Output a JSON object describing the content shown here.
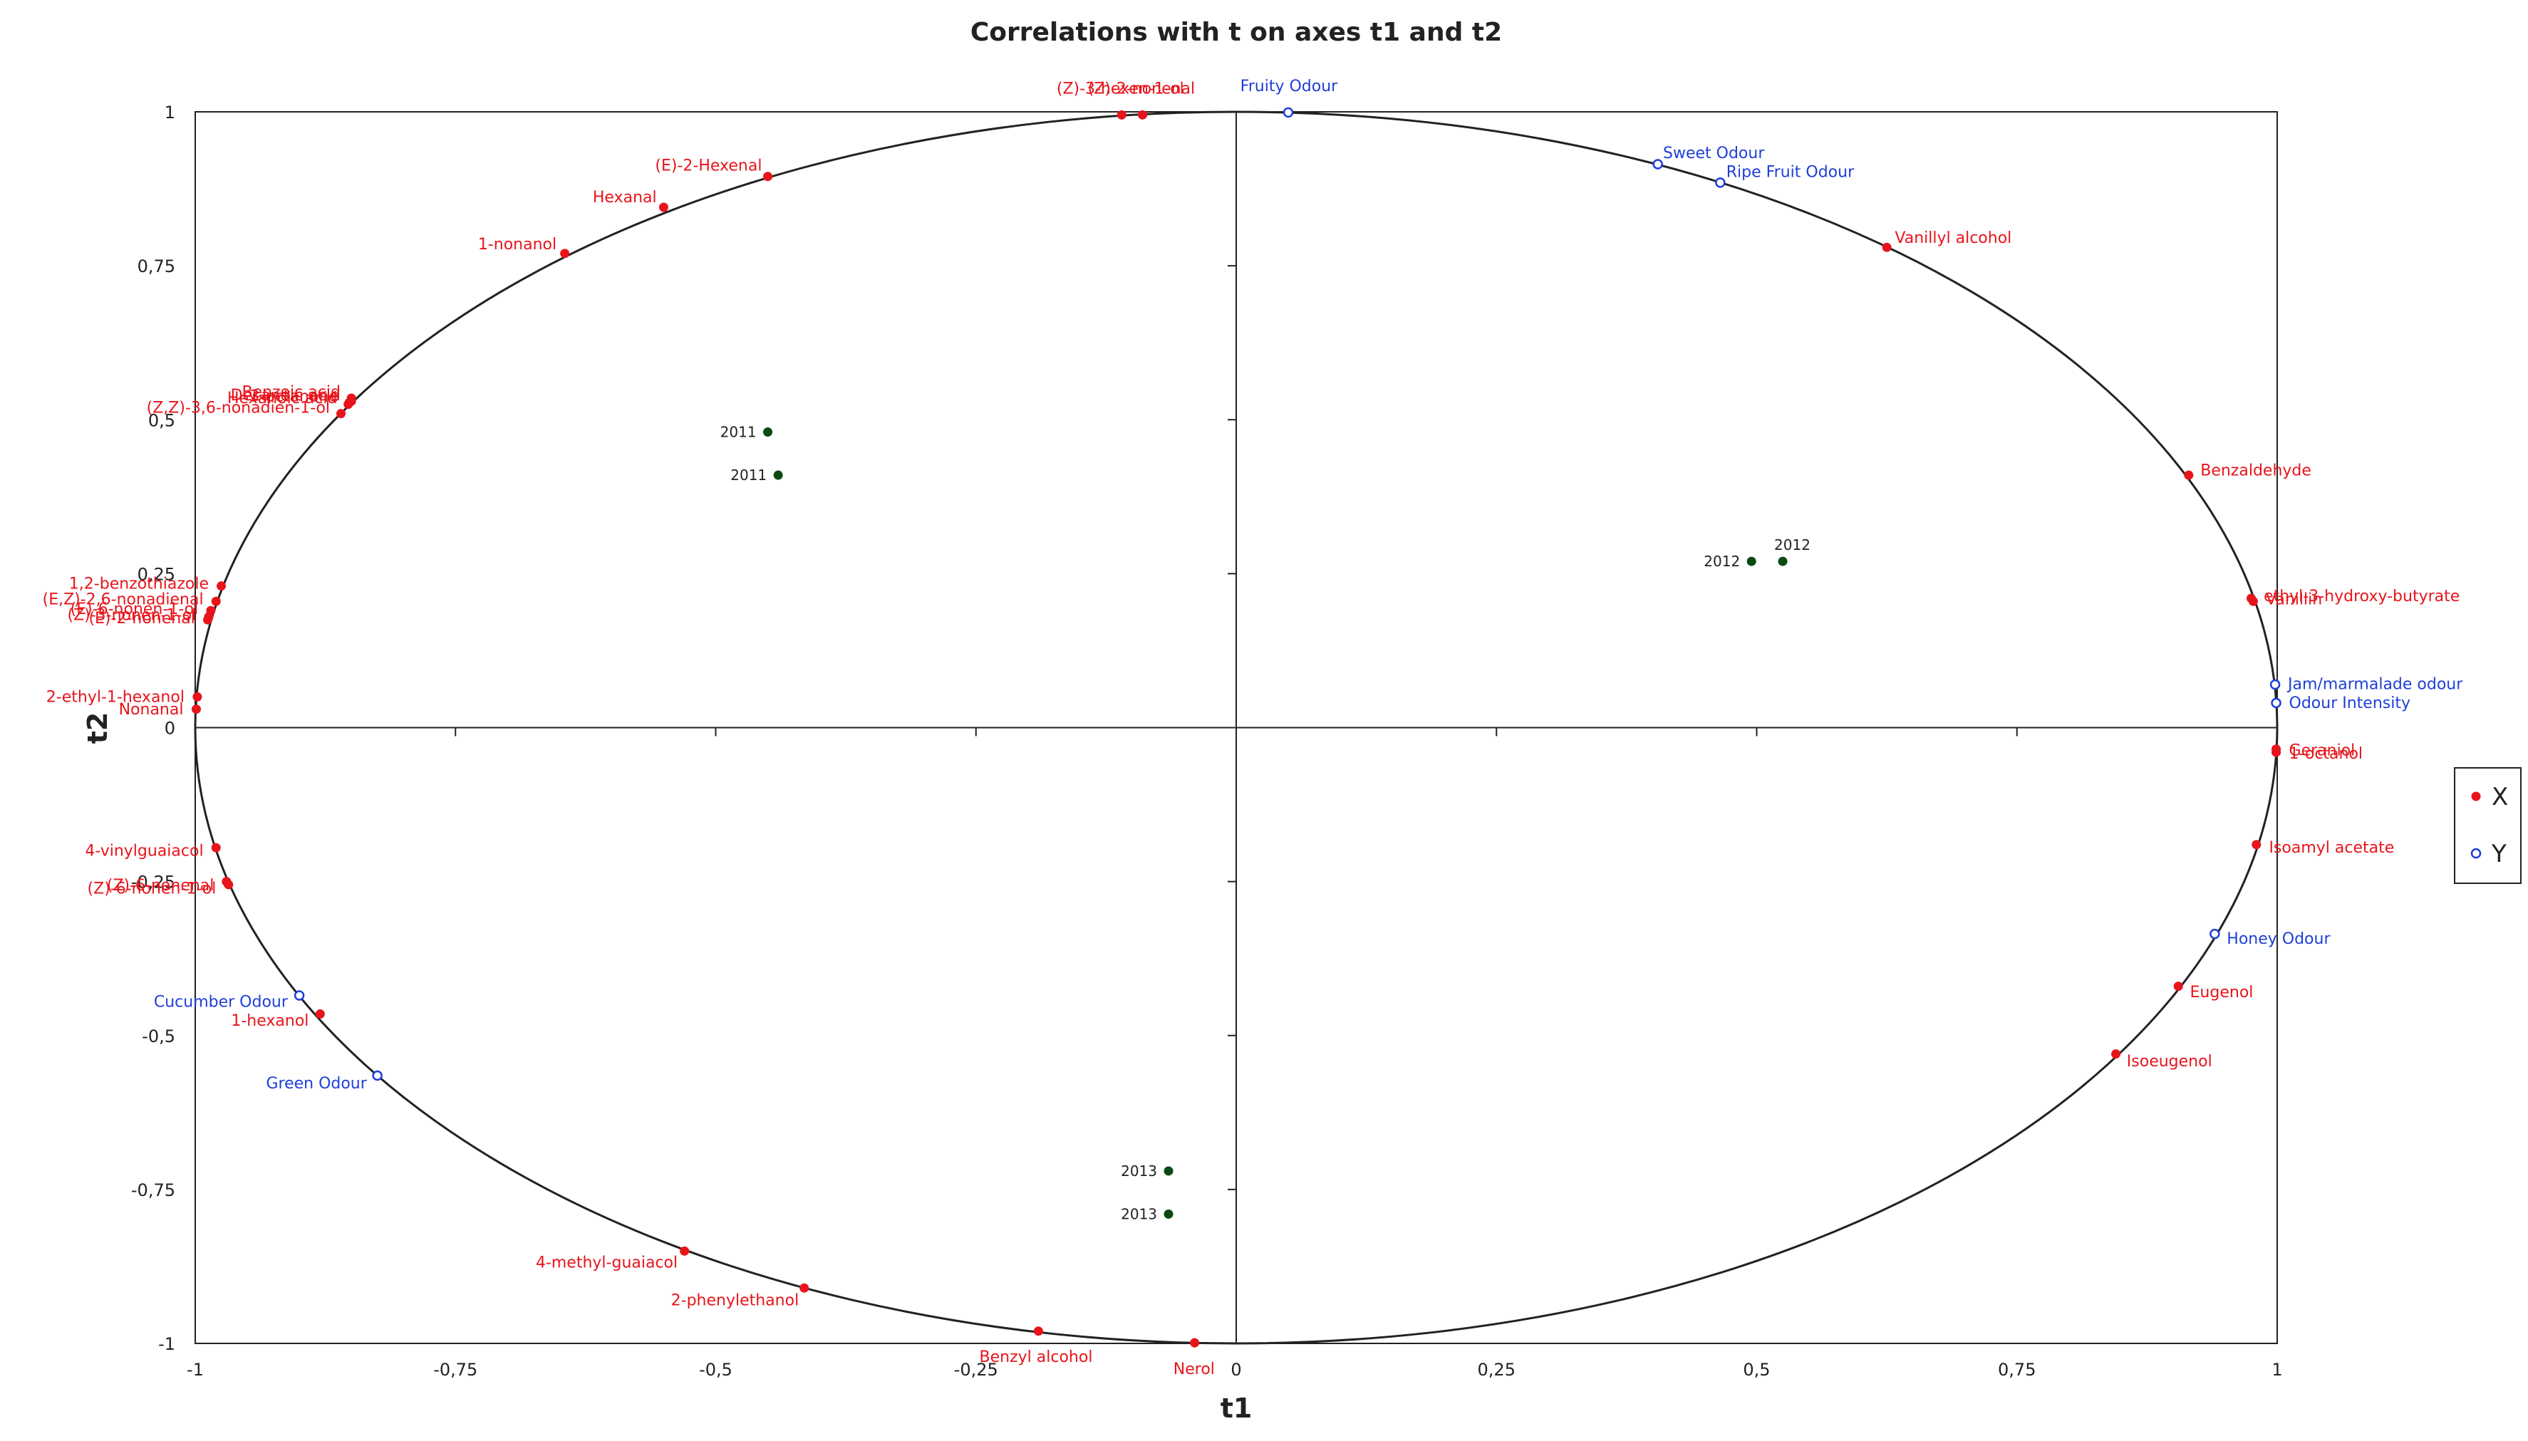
{
  "chart_data": {
    "type": "scatter",
    "title": "Correlations with t on axes t1 and t2",
    "xlabel": "t1",
    "ylabel": "t2",
    "xlim": [
      -1,
      1
    ],
    "ylim": [
      -1,
      1
    ],
    "x_ticks": [
      "-1",
      "-0,75",
      "-0,5",
      "-0,25",
      "0",
      "0,25",
      "0,5",
      "0,75",
      "1"
    ],
    "y_ticks": [
      "-1",
      "-0,75",
      "-0,5",
      "-0,25",
      "0",
      "0,25",
      "0,5",
      "0,75",
      "1"
    ],
    "circle": "correlation circle (unit circle)",
    "legend_position": "right",
    "colors": {
      "X": "#e8141b",
      "Y": "#1f3fd8",
      "years": "#0a4a12",
      "curve": "#222222"
    },
    "legend": [
      {
        "label": "X",
        "marker": "filled-dot",
        "color": "#e8141b"
      },
      {
        "label": "Y",
        "marker": "open-circle",
        "color": "#1f3fd8"
      }
    ],
    "series": [
      {
        "name": "X",
        "points": [
          {
            "label": "(Z)-3-hexen-1-ol",
            "x": -0.11,
            "y": 0.995
          },
          {
            "label": "(Z)-2-nonenal",
            "x": -0.09,
            "y": 0.995
          },
          {
            "label": "(E)-2-Hexenal",
            "x": -0.45,
            "y": 0.895
          },
          {
            "label": "Hexanal",
            "x": -0.55,
            "y": 0.845
          },
          {
            "label": "1-nonanol",
            "x": -0.645,
            "y": 0.77
          },
          {
            "label": "Benzoic acid",
            "x": -0.85,
            "y": 0.535
          },
          {
            "label": "Decanoic acid",
            "x": -0.85,
            "y": 0.53
          },
          {
            "label": "3-octanone",
            "x": -0.852,
            "y": 0.528
          },
          {
            "label": "Hexanoic acid",
            "x": -0.853,
            "y": 0.525
          },
          {
            "label": "(Z,Z)-3,6-nonadien-1-ol",
            "x": -0.86,
            "y": 0.51
          },
          {
            "label": "1,2-benzothiazole",
            "x": -0.975,
            "y": 0.23
          },
          {
            "label": "(E,Z)-2,6-nonadienal",
            "x": -0.98,
            "y": 0.205
          },
          {
            "label": "(E)-6-nonen-1-ol",
            "x": -0.985,
            "y": 0.19
          },
          {
            "label": "(Z)-3-nonen-1-ol",
            "x": -0.987,
            "y": 0.18
          },
          {
            "label": "(E)-2-nonenal",
            "x": -0.988,
            "y": 0.175
          },
          {
            "label": "2-ethyl-1-hexanol",
            "x": -0.998,
            "y": 0.05
          },
          {
            "label": "Nonanal",
            "x": -0.999,
            "y": 0.03
          },
          {
            "label": "4-vinylguaiacol",
            "x": -0.98,
            "y": -0.195
          },
          {
            "label": "(Z)-6-nonenal",
            "x": -0.97,
            "y": -0.25
          },
          {
            "label": "(Z)-6-nonen-1-ol",
            "x": -0.968,
            "y": -0.255
          },
          {
            "label": "1-hexanol",
            "x": -0.88,
            "y": -0.465
          },
          {
            "label": "4-methyl-guaiacol",
            "x": -0.53,
            "y": -0.85
          },
          {
            "label": "2-phenylethanol",
            "x": -0.415,
            "y": -0.91
          },
          {
            "label": "Benzyl alcohol",
            "x": -0.19,
            "y": -0.98
          },
          {
            "label": "Nerol",
            "x": -0.04,
            "y": -0.999
          },
          {
            "label": "Vanillyl alcohol",
            "x": 0.625,
            "y": 0.78
          },
          {
            "label": "Benzaldehyde",
            "x": 0.915,
            "y": 0.41
          },
          {
            "label": "ethyl-3-hydroxy-butyrate",
            "x": 0.975,
            "y": 0.21
          },
          {
            "label": "Vanillin",
            "x": 0.977,
            "y": 0.205
          },
          {
            "label": "Geraniol",
            "x": 0.999,
            "y": -0.035
          },
          {
            "label": "1-octanol",
            "x": 0.999,
            "y": -0.04
          },
          {
            "label": "Isoamyl acetate",
            "x": 0.98,
            "y": -0.19
          },
          {
            "label": "Eugenol",
            "x": 0.905,
            "y": -0.42
          },
          {
            "label": "Isoeugenol",
            "x": 0.845,
            "y": -0.53
          }
        ]
      },
      {
        "name": "Y",
        "points": [
          {
            "label": "Fruity Odour",
            "x": 0.05,
            "y": 0.999
          },
          {
            "label": "Sweet Odour",
            "x": 0.405,
            "y": 0.915
          },
          {
            "label": "Ripe Fruit Odour",
            "x": 0.465,
            "y": 0.885
          },
          {
            "label": "Jam/marmalade odour",
            "x": 0.998,
            "y": 0.07
          },
          {
            "label": "Odour Intensity",
            "x": 0.999,
            "y": 0.04
          },
          {
            "label": "Honey Odour",
            "x": 0.94,
            "y": -0.335
          },
          {
            "label": "Cucumber Odour",
            "x": -0.9,
            "y": -0.435
          },
          {
            "label": "Green Odour",
            "x": -0.825,
            "y": -0.565
          }
        ]
      },
      {
        "name": "observations",
        "points": [
          {
            "label": "2011",
            "x": -0.45,
            "y": 0.48
          },
          {
            "label": "2011",
            "x": -0.44,
            "y": 0.41
          },
          {
            "label": "2012",
            "x": 0.495,
            "y": 0.27
          },
          {
            "label": "2012",
            "x": 0.525,
            "y": 0.27
          },
          {
            "label": "2013",
            "x": -0.065,
            "y": -0.72
          },
          {
            "label": "2013",
            "x": -0.065,
            "y": -0.79
          }
        ]
      }
    ]
  }
}
